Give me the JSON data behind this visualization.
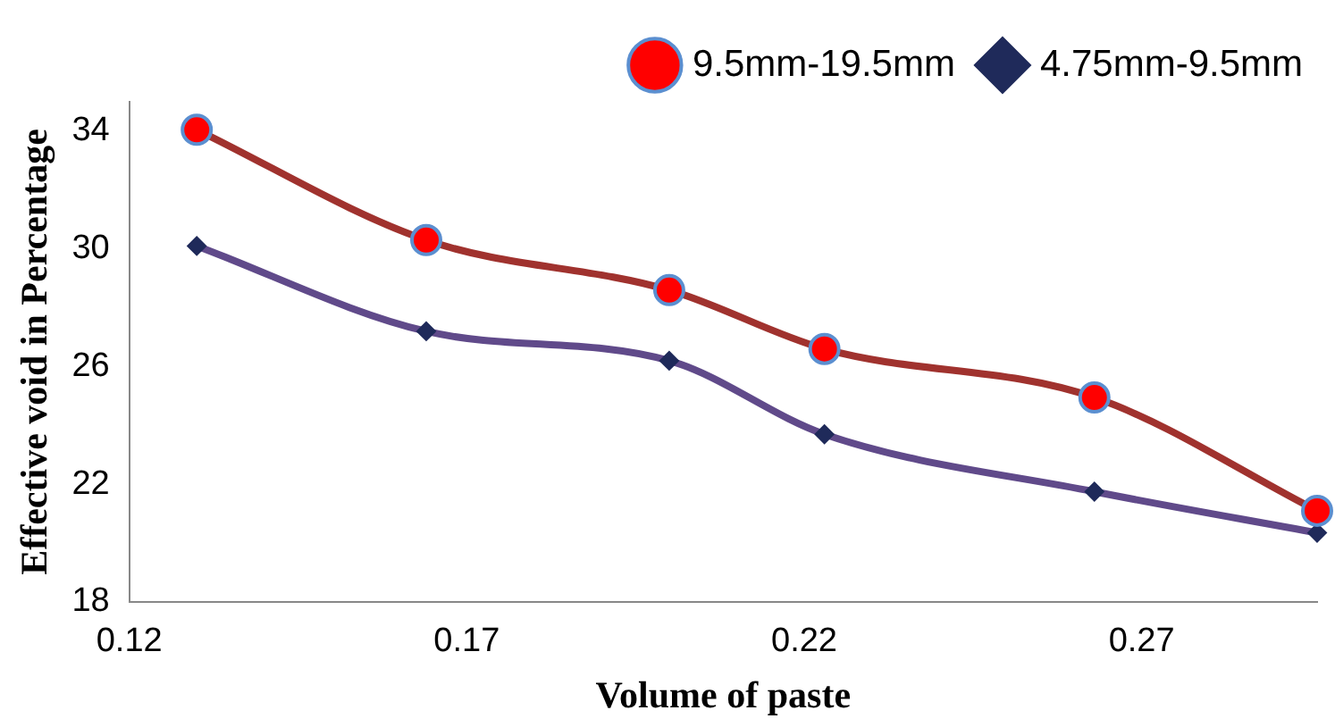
{
  "chart_data": {
    "type": "line",
    "xlabel": "Volume of paste",
    "ylabel": "Effective void in Percentage",
    "x": [
      0.13,
      0.164,
      0.2,
      0.223,
      0.263,
      0.296
    ],
    "series": [
      {
        "name": "9.5mm-19.5mm",
        "color": "#a0322e",
        "marker": "circle",
        "values": [
          34.05,
          30.3,
          28.6,
          26.6,
          24.95,
          21.1
        ]
      },
      {
        "name": "4.75mm-9.5mm",
        "color": "#604a8a",
        "marker": "diamond",
        "values": [
          30.1,
          27.2,
          26.2,
          23.7,
          21.75,
          20.35
        ]
      }
    ],
    "xlim": [
      0.12,
      0.296
    ],
    "xticks": [
      0.12,
      0.17,
      0.22,
      0.27
    ],
    "ylim": [
      18,
      35
    ],
    "yticks": [
      18,
      22,
      26,
      30,
      34
    ],
    "grid": false,
    "legend": "top right"
  }
}
